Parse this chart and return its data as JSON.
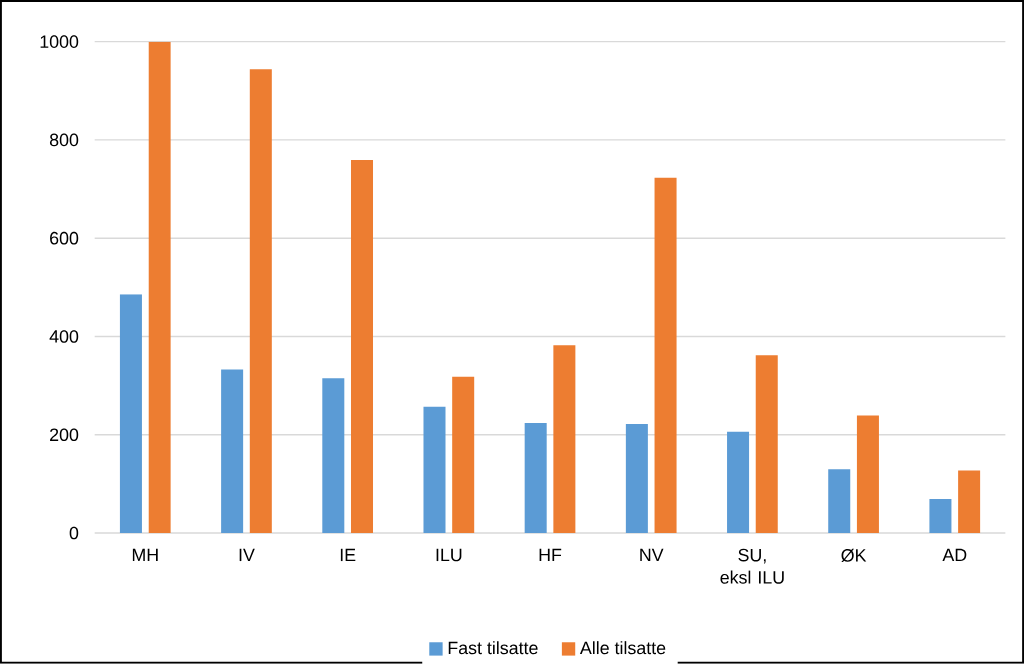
{
  "chart_data": {
    "type": "bar",
    "categories": [
      "MH",
      "IV",
      "IE",
      "ILU",
      "HF",
      "NV",
      "SU, eksl ILU",
      "ØK",
      "AD"
    ],
    "series": [
      {
        "name": "Fast tilsatte",
        "color": "#5b9bd5",
        "values": [
          486,
          333,
          315,
          257,
          224,
          222,
          206,
          130,
          69
        ]
      },
      {
        "name": "Alle tilsatte",
        "color": "#ed7d31",
        "values": [
          1000,
          944,
          759,
          318,
          382,
          723,
          362,
          239,
          127
        ]
      }
    ],
    "ylim": [
      0,
      1000
    ],
    "yticks": [
      0,
      200,
      400,
      600,
      800,
      1000
    ],
    "grid": "y",
    "legend": "bottom"
  }
}
